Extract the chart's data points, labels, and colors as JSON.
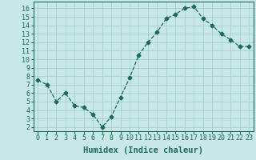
{
  "title": "",
  "xlabel": "Humidex (Indice chaleur)",
  "ylabel": "",
  "x_values": [
    0,
    1,
    2,
    3,
    4,
    5,
    6,
    7,
    8,
    9,
    10,
    11,
    12,
    13,
    14,
    15,
    16,
    17,
    18,
    19,
    20,
    21,
    22,
    23
  ],
  "y_values": [
    7.5,
    7.0,
    5.0,
    6.0,
    4.5,
    4.3,
    3.5,
    2.0,
    3.2,
    5.5,
    7.8,
    10.5,
    12.0,
    13.2,
    14.8,
    15.3,
    16.0,
    16.2,
    14.8,
    14.0,
    13.0,
    12.3,
    11.5,
    11.5
  ],
  "line_color": "#1a6b5a",
  "marker": "D",
  "marker_size": 2.5,
  "bg_color": "#c8e8e8",
  "grid_color": "#a0c8c8",
  "xlim": [
    -0.5,
    23.5
  ],
  "ylim": [
    1.5,
    16.8
  ],
  "yticks": [
    2,
    3,
    4,
    5,
    6,
    7,
    8,
    9,
    10,
    11,
    12,
    13,
    14,
    15,
    16
  ],
  "xticks": [
    0,
    1,
    2,
    3,
    4,
    5,
    6,
    7,
    8,
    9,
    10,
    11,
    12,
    13,
    14,
    15,
    16,
    17,
    18,
    19,
    20,
    21,
    22,
    23
  ],
  "xlabel_fontsize": 7.5,
  "tick_fontsize": 6.0
}
